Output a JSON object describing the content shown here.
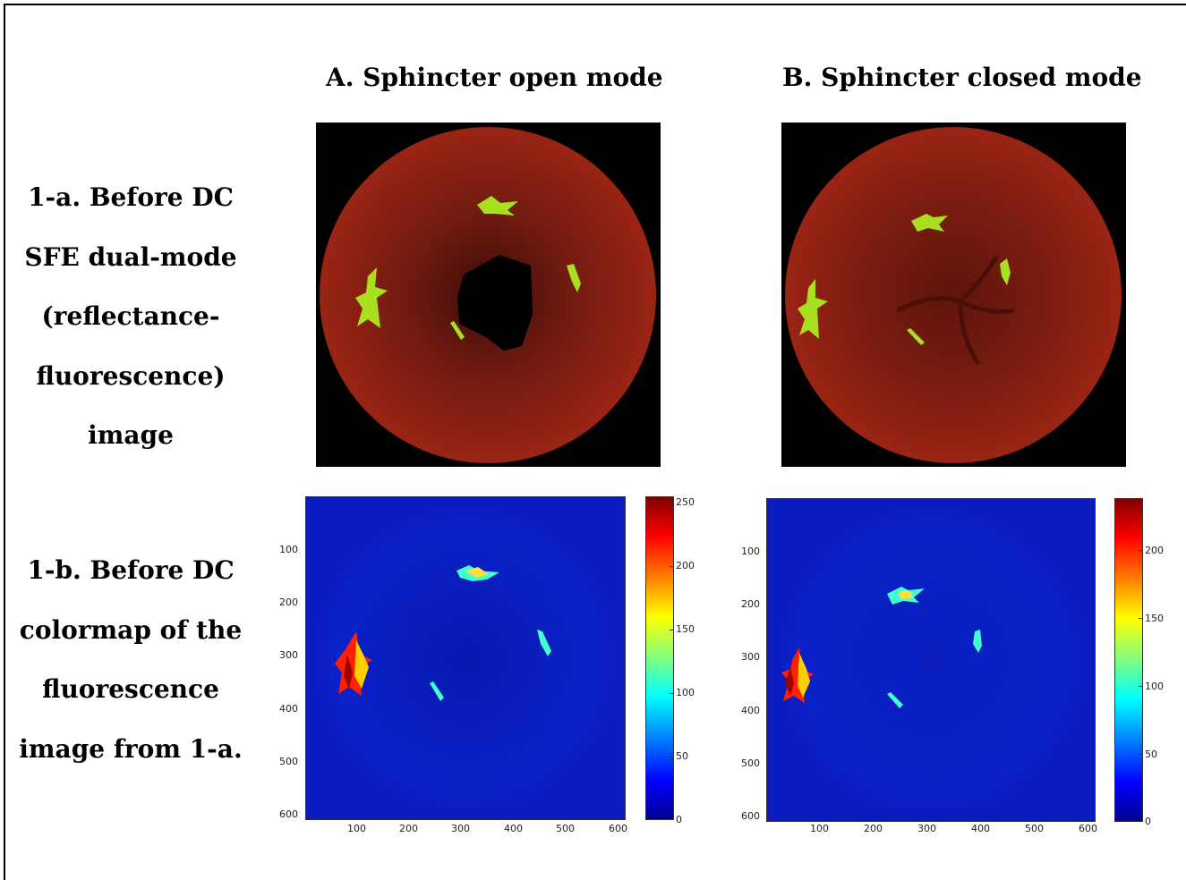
{
  "columns": {
    "a": "A. Sphincter open mode",
    "b": "B. Sphincter closed mode"
  },
  "rows": {
    "r1": [
      "1-a. Before DC",
      "SFE dual-mode",
      "(reflectance-",
      "fluorescence)",
      "image"
    ],
    "r2": [
      "1-b. Before DC",
      "colormap of the",
      "fluorescence",
      "image from 1-a."
    ]
  },
  "plot_a": {
    "y_ticks": [
      "100",
      "200",
      "300",
      "400",
      "500",
      "600"
    ],
    "x_ticks": [
      "100",
      "200",
      "300",
      "400",
      "500",
      "600"
    ],
    "colorbar_ticks": [
      "250",
      "200",
      "150",
      "100",
      "50",
      "0"
    ]
  },
  "plot_b": {
    "y_ticks": [
      "100",
      "200",
      "300",
      "400",
      "500",
      "600"
    ],
    "x_ticks": [
      "100",
      "200",
      "300",
      "400",
      "500",
      "600"
    ],
    "colorbar_ticks": [
      "200",
      "150",
      "100",
      "50",
      "0"
    ]
  },
  "colors": {
    "tissue_red": "#8b1a10",
    "marker_green": "#a8e020",
    "map_blue": "#0a1bbf"
  }
}
